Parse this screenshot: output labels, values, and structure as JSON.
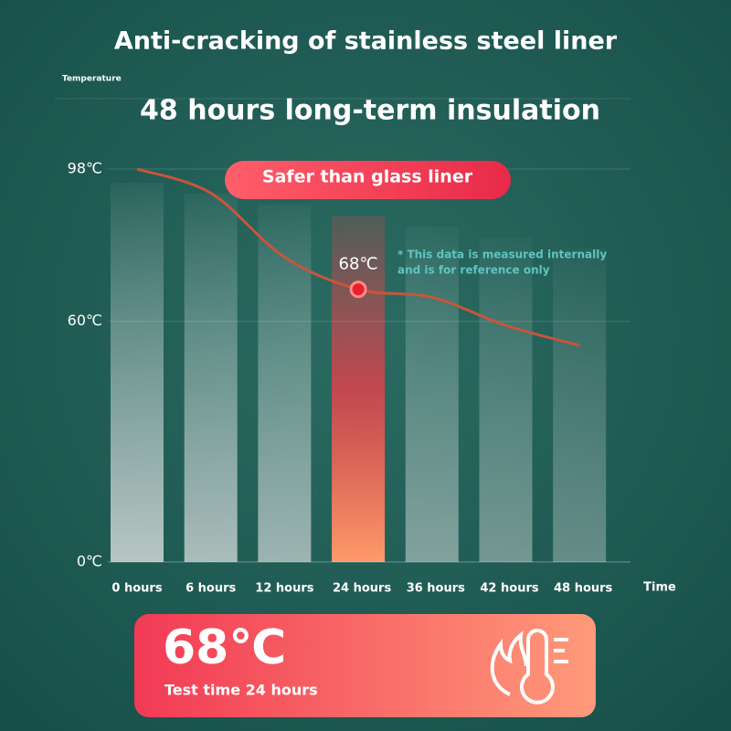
{
  "chart_data": {
    "type": "line",
    "title": "Anti-cracking of stainless steel liner",
    "subtitle": "48 hours long-term insulation",
    "y_label": "Temperature",
    "x_label": "Time",
    "categories": [
      "0 hours",
      "6 hours",
      "12 hours",
      "24 hours",
      "36 hours",
      "42 hours",
      "48 hours"
    ],
    "values": [
      98,
      92,
      76,
      68,
      66,
      59,
      54
    ],
    "value_labels": [
      null,
      null,
      null,
      "68℃",
      null,
      null,
      null
    ],
    "color": "#c8553a",
    "ylim": [
      0,
      98
    ],
    "yticks": [
      {
        "value": 0,
        "label": "0℃"
      },
      {
        "value": 60,
        "label": "60℃"
      },
      {
        "value": 98,
        "label": "98℃"
      }
    ],
    "grid": true
  },
  "badge": "Safer than glass liner",
  "note": [
    "* This data is measured internally",
    "and is for reference only"
  ],
  "card": {
    "value": "68℃",
    "caption": "Test time 24 hours"
  }
}
